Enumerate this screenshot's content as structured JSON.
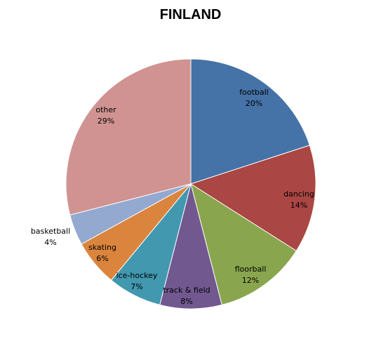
{
  "chart_data": {
    "type": "pie",
    "title": "FINLAND",
    "slices": [
      {
        "label": "football",
        "value": 20,
        "pct_label": "20%",
        "color": "#4572a7"
      },
      {
        "label": "dancing",
        "value": 14,
        "pct_label": "14%",
        "color": "#aa4643"
      },
      {
        "label": "floorball",
        "value": 12,
        "pct_label": "12%",
        "color": "#89a54e"
      },
      {
        "label": "track & field",
        "value": 8,
        "pct_label": "8%",
        "color": "#71588f"
      },
      {
        "label": "ice-hockey",
        "value": 7,
        "pct_label": "7%",
        "color": "#4198af"
      },
      {
        "label": "skating",
        "value": 6,
        "pct_label": "6%",
        "color": "#db843d"
      },
      {
        "label": "basketball",
        "value": 4,
        "pct_label": "4%",
        "color": "#93a9cf"
      },
      {
        "label": "other",
        "value": 29,
        "pct_label": "29%",
        "color": "#d09392"
      }
    ],
    "start": "12 o'clock",
    "direction": "clockwise",
    "legend": "none",
    "data_labels": "category and percent"
  }
}
